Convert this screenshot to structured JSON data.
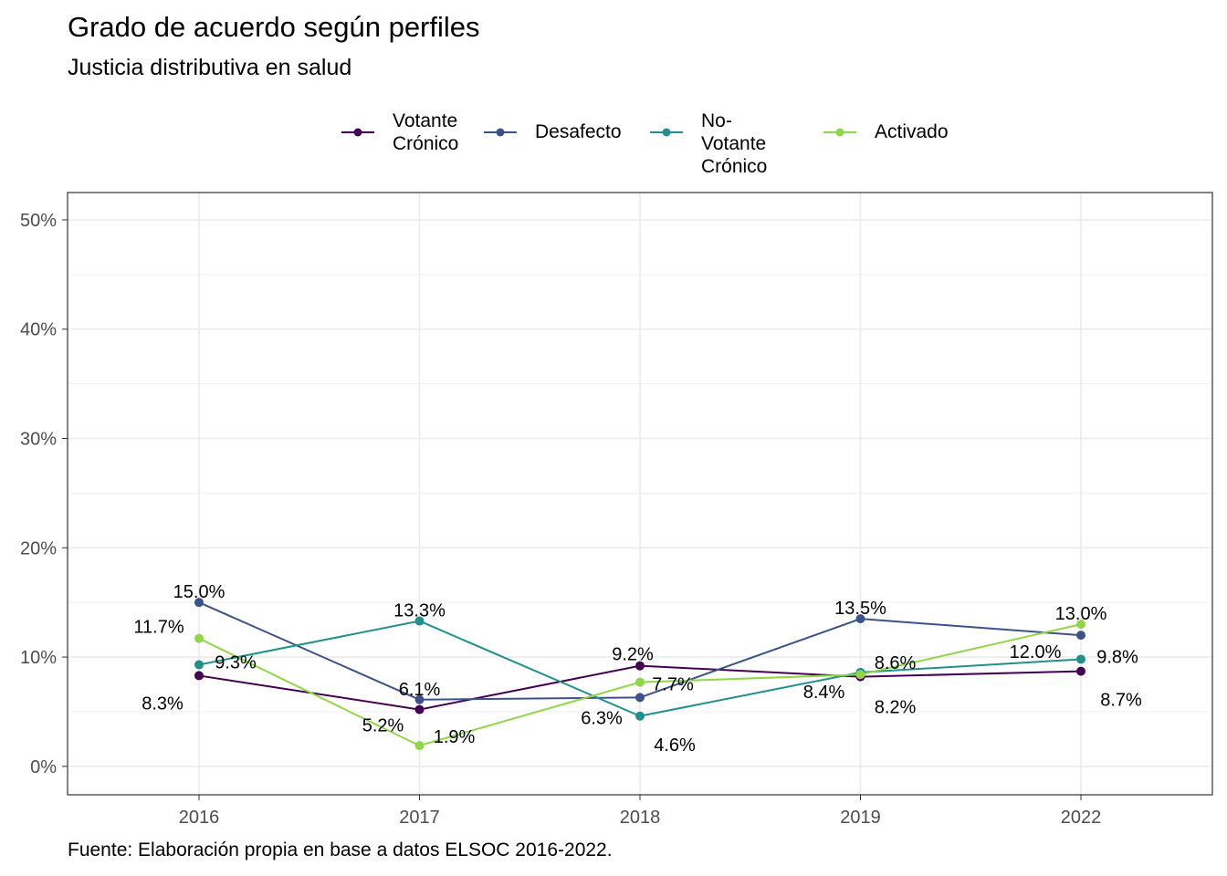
{
  "chart_data": {
    "type": "line",
    "title": "Grado de acuerdo según perfiles",
    "subtitle": "Justicia distributiva en salud",
    "caption": "Fuente: Elaboración propia en base a datos ELSOC 2016-2022.",
    "xlabel": "",
    "ylabel": "",
    "categories": [
      "2016",
      "2017",
      "2018",
      "2019",
      "2022"
    ],
    "y_ticks": [
      "0%",
      "10%",
      "20%",
      "30%",
      "40%",
      "50%"
    ],
    "ylim": [
      -2.6,
      52.5
    ],
    "grid": true,
    "legend_position": "top",
    "series": [
      {
        "name": "Votante\nCrónico",
        "color": "#440154",
        "values": [
          8.3,
          5.2,
          9.2,
          8.2,
          8.7
        ],
        "labels": [
          "8.3%",
          "5.2%",
          "9.2%",
          "8.2%",
          "8.7%"
        ]
      },
      {
        "name": "Desafecto",
        "color": "#3b528b",
        "values": [
          15.0,
          6.1,
          6.3,
          13.5,
          12.0
        ],
        "labels": [
          "15.0%",
          "6.1%",
          "6.3%",
          "13.5%",
          "12.0%"
        ]
      },
      {
        "name": "No-Votante\nCrónico",
        "color": "#21908c",
        "values": [
          9.3,
          13.3,
          4.6,
          8.6,
          9.8
        ],
        "labels": [
          "9.3%",
          "13.3%",
          "4.6%",
          "8.6%",
          "9.8%"
        ]
      },
      {
        "name": "Activado",
        "color": "#8fd744",
        "values": [
          11.7,
          1.9,
          7.7,
          8.4,
          13.0
        ],
        "labels": [
          "11.7%",
          "1.9%",
          "7.7%",
          "8.4%",
          "13.0%"
        ]
      }
    ]
  }
}
